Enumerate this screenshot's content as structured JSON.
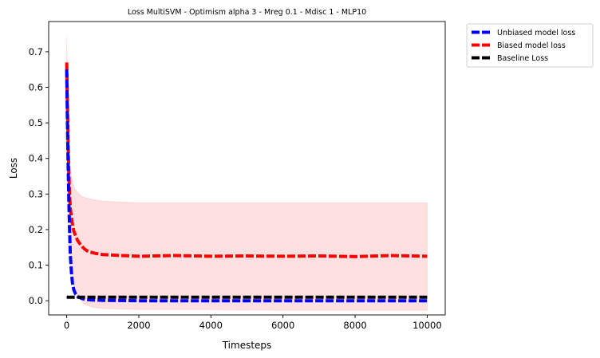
{
  "chart_data": {
    "type": "line",
    "title": "Loss MultiSVM - Optimism alpha 3 - Mreg 0.1 - Mdisc 1 - MLP10",
    "xlabel": "Timesteps",
    "ylabel": "Loss",
    "xlim": [
      -500,
      10500
    ],
    "ylim": [
      -0.04,
      0.785
    ],
    "xticks": [
      0,
      2000,
      4000,
      6000,
      8000,
      10000
    ],
    "xtick_labels": [
      "0",
      "2000",
      "4000",
      "6000",
      "8000",
      "10000"
    ],
    "yticks": [
      0.0,
      0.1,
      0.2,
      0.3,
      0.4,
      0.5,
      0.6,
      0.7
    ],
    "ytick_labels": [
      "0.0",
      "0.1",
      "0.2",
      "0.3",
      "0.4",
      "0.5",
      "0.6",
      "0.7"
    ],
    "grid": false,
    "legend_position": "outside-top-right",
    "series": [
      {
        "name": "Unbiased model loss",
        "color": "#0000ff",
        "style": "dashed",
        "x": [
          0,
          20,
          40,
          60,
          80,
          100,
          130,
          160,
          200,
          250,
          300,
          400,
          500,
          700,
          1000,
          2000,
          3000,
          4000,
          5000,
          6000,
          7000,
          8000,
          9000,
          10000
        ],
        "y": [
          0.65,
          0.5,
          0.38,
          0.28,
          0.2,
          0.13,
          0.08,
          0.05,
          0.03,
          0.018,
          0.012,
          0.007,
          0.004,
          0.002,
          0.001,
          0.0,
          0.0,
          0.0,
          0.0,
          0.0,
          0.0,
          0.0,
          0.0,
          0.0
        ]
      },
      {
        "name": "Biased model loss",
        "color": "#ff0000",
        "style": "dashed",
        "x": [
          0,
          20,
          40,
          60,
          80,
          100,
          150,
          200,
          300,
          400,
          500,
          600,
          800,
          1000,
          1500,
          2000,
          3000,
          4000,
          5000,
          6000,
          7000,
          8000,
          9000,
          10000
        ],
        "y": [
          0.67,
          0.55,
          0.44,
          0.36,
          0.3,
          0.26,
          0.22,
          0.195,
          0.17,
          0.155,
          0.145,
          0.138,
          0.133,
          0.13,
          0.127,
          0.125,
          0.127,
          0.125,
          0.126,
          0.125,
          0.126,
          0.124,
          0.127,
          0.125
        ]
      },
      {
        "name": "Baseline Loss",
        "color": "#000000",
        "style": "dashed",
        "x": [
          0,
          10000
        ],
        "y": [
          0.01,
          0.01
        ]
      }
    ],
    "bands": [
      {
        "series": "Biased model loss",
        "color": "#ff0000",
        "opacity": 0.12,
        "x": [
          0,
          20,
          40,
          60,
          80,
          100,
          150,
          200,
          300,
          400,
          500,
          700,
          1000,
          2000,
          4000,
          6000,
          8000,
          10000
        ],
        "upper": [
          0.745,
          0.62,
          0.52,
          0.45,
          0.4,
          0.37,
          0.34,
          0.32,
          0.305,
          0.295,
          0.29,
          0.285,
          0.28,
          0.275,
          0.275,
          0.275,
          0.275,
          0.275
        ],
        "lower": [
          0.58,
          0.45,
          0.32,
          0.22,
          0.15,
          0.1,
          0.06,
          0.04,
          0.015,
          0.0,
          -0.01,
          -0.018,
          -0.022,
          -0.025,
          -0.025,
          -0.027,
          -0.027,
          -0.027
        ]
      }
    ]
  }
}
